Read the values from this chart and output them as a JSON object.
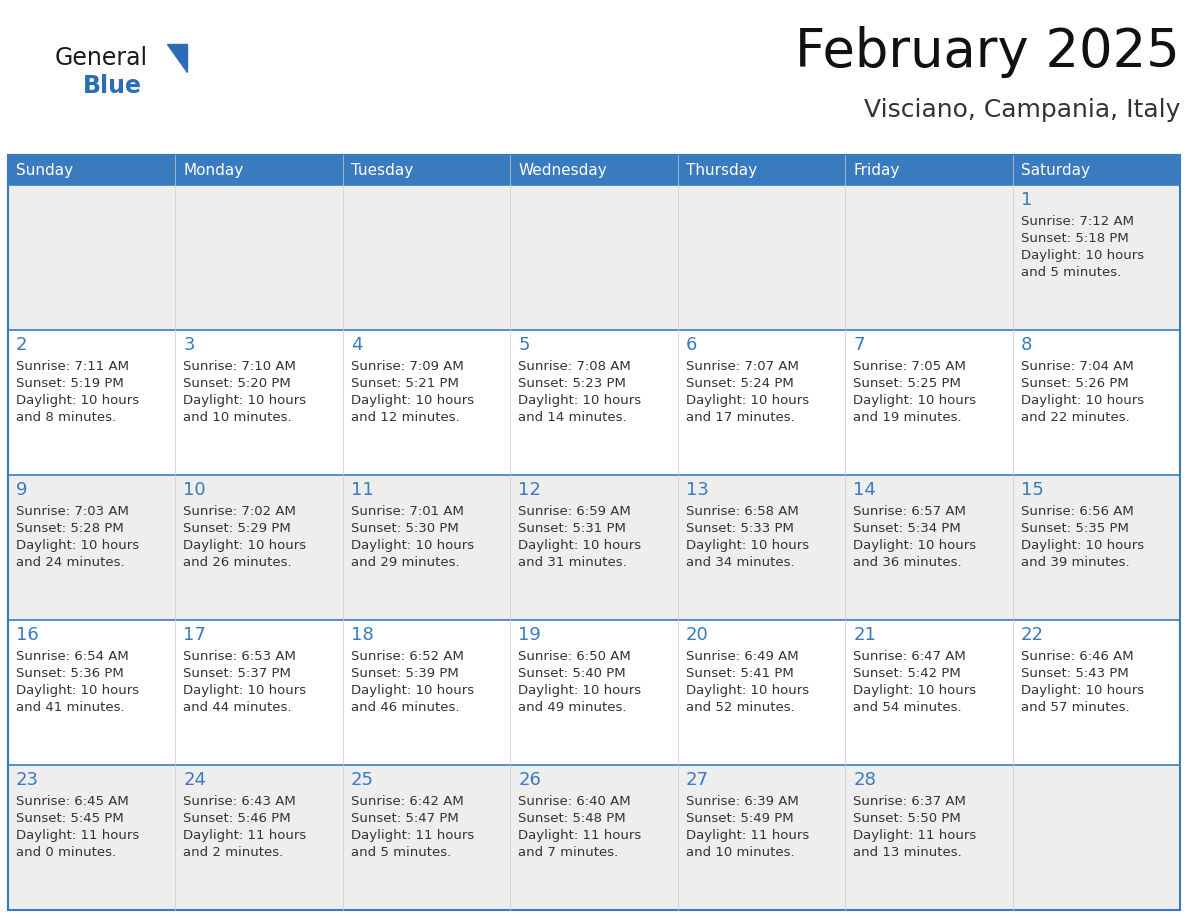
{
  "title": "February 2025",
  "subtitle": "Visciano, Campania, Italy",
  "header_color": "#3a7abf",
  "header_text_color": "#ffffff",
  "cell_bg_white": "#ffffff",
  "cell_bg_gray": "#eeeeee",
  "border_color": "#3a7abf",
  "day_num_color": "#3a7abf",
  "text_color": "#333333",
  "days_of_week": [
    "Sunday",
    "Monday",
    "Tuesday",
    "Wednesday",
    "Thursday",
    "Friday",
    "Saturday"
  ],
  "logo_general_color": "#1a1a1a",
  "logo_blue_color": "#2a6db5",
  "calendar": [
    [
      null,
      null,
      null,
      null,
      null,
      null,
      {
        "day": 1,
        "sunrise": "7:12 AM",
        "sunset": "5:18 PM",
        "daylight": "10 hours",
        "daylight2": "and 5 minutes."
      }
    ],
    [
      {
        "day": 2,
        "sunrise": "7:11 AM",
        "sunset": "5:19 PM",
        "daylight": "10 hours",
        "daylight2": "and 8 minutes."
      },
      {
        "day": 3,
        "sunrise": "7:10 AM",
        "sunset": "5:20 PM",
        "daylight": "10 hours",
        "daylight2": "and 10 minutes."
      },
      {
        "day": 4,
        "sunrise": "7:09 AM",
        "sunset": "5:21 PM",
        "daylight": "10 hours",
        "daylight2": "and 12 minutes."
      },
      {
        "day": 5,
        "sunrise": "7:08 AM",
        "sunset": "5:23 PM",
        "daylight": "10 hours",
        "daylight2": "and 14 minutes."
      },
      {
        "day": 6,
        "sunrise": "7:07 AM",
        "sunset": "5:24 PM",
        "daylight": "10 hours",
        "daylight2": "and 17 minutes."
      },
      {
        "day": 7,
        "sunrise": "7:05 AM",
        "sunset": "5:25 PM",
        "daylight": "10 hours",
        "daylight2": "and 19 minutes."
      },
      {
        "day": 8,
        "sunrise": "7:04 AM",
        "sunset": "5:26 PM",
        "daylight": "10 hours",
        "daylight2": "and 22 minutes."
      }
    ],
    [
      {
        "day": 9,
        "sunrise": "7:03 AM",
        "sunset": "5:28 PM",
        "daylight": "10 hours",
        "daylight2": "and 24 minutes."
      },
      {
        "day": 10,
        "sunrise": "7:02 AM",
        "sunset": "5:29 PM",
        "daylight": "10 hours",
        "daylight2": "and 26 minutes."
      },
      {
        "day": 11,
        "sunrise": "7:01 AM",
        "sunset": "5:30 PM",
        "daylight": "10 hours",
        "daylight2": "and 29 minutes."
      },
      {
        "day": 12,
        "sunrise": "6:59 AM",
        "sunset": "5:31 PM",
        "daylight": "10 hours",
        "daylight2": "and 31 minutes."
      },
      {
        "day": 13,
        "sunrise": "6:58 AM",
        "sunset": "5:33 PM",
        "daylight": "10 hours",
        "daylight2": "and 34 minutes."
      },
      {
        "day": 14,
        "sunrise": "6:57 AM",
        "sunset": "5:34 PM",
        "daylight": "10 hours",
        "daylight2": "and 36 minutes."
      },
      {
        "day": 15,
        "sunrise": "6:56 AM",
        "sunset": "5:35 PM",
        "daylight": "10 hours",
        "daylight2": "and 39 minutes."
      }
    ],
    [
      {
        "day": 16,
        "sunrise": "6:54 AM",
        "sunset": "5:36 PM",
        "daylight": "10 hours",
        "daylight2": "and 41 minutes."
      },
      {
        "day": 17,
        "sunrise": "6:53 AM",
        "sunset": "5:37 PM",
        "daylight": "10 hours",
        "daylight2": "and 44 minutes."
      },
      {
        "day": 18,
        "sunrise": "6:52 AM",
        "sunset": "5:39 PM",
        "daylight": "10 hours",
        "daylight2": "and 46 minutes."
      },
      {
        "day": 19,
        "sunrise": "6:50 AM",
        "sunset": "5:40 PM",
        "daylight": "10 hours",
        "daylight2": "and 49 minutes."
      },
      {
        "day": 20,
        "sunrise": "6:49 AM",
        "sunset": "5:41 PM",
        "daylight": "10 hours",
        "daylight2": "and 52 minutes."
      },
      {
        "day": 21,
        "sunrise": "6:47 AM",
        "sunset": "5:42 PM",
        "daylight": "10 hours",
        "daylight2": "and 54 minutes."
      },
      {
        "day": 22,
        "sunrise": "6:46 AM",
        "sunset": "5:43 PM",
        "daylight": "10 hours",
        "daylight2": "and 57 minutes."
      }
    ],
    [
      {
        "day": 23,
        "sunrise": "6:45 AM",
        "sunset": "5:45 PM",
        "daylight": "11 hours",
        "daylight2": "and 0 minutes."
      },
      {
        "day": 24,
        "sunrise": "6:43 AM",
        "sunset": "5:46 PM",
        "daylight": "11 hours",
        "daylight2": "and 2 minutes."
      },
      {
        "day": 25,
        "sunrise": "6:42 AM",
        "sunset": "5:47 PM",
        "daylight": "11 hours",
        "daylight2": "and 5 minutes."
      },
      {
        "day": 26,
        "sunrise": "6:40 AM",
        "sunset": "5:48 PM",
        "daylight": "11 hours",
        "daylight2": "and 7 minutes."
      },
      {
        "day": 27,
        "sunrise": "6:39 AM",
        "sunset": "5:49 PM",
        "daylight": "11 hours",
        "daylight2": "and 10 minutes."
      },
      {
        "day": 28,
        "sunrise": "6:37 AM",
        "sunset": "5:50 PM",
        "daylight": "11 hours",
        "daylight2": "and 13 minutes."
      },
      null
    ]
  ]
}
